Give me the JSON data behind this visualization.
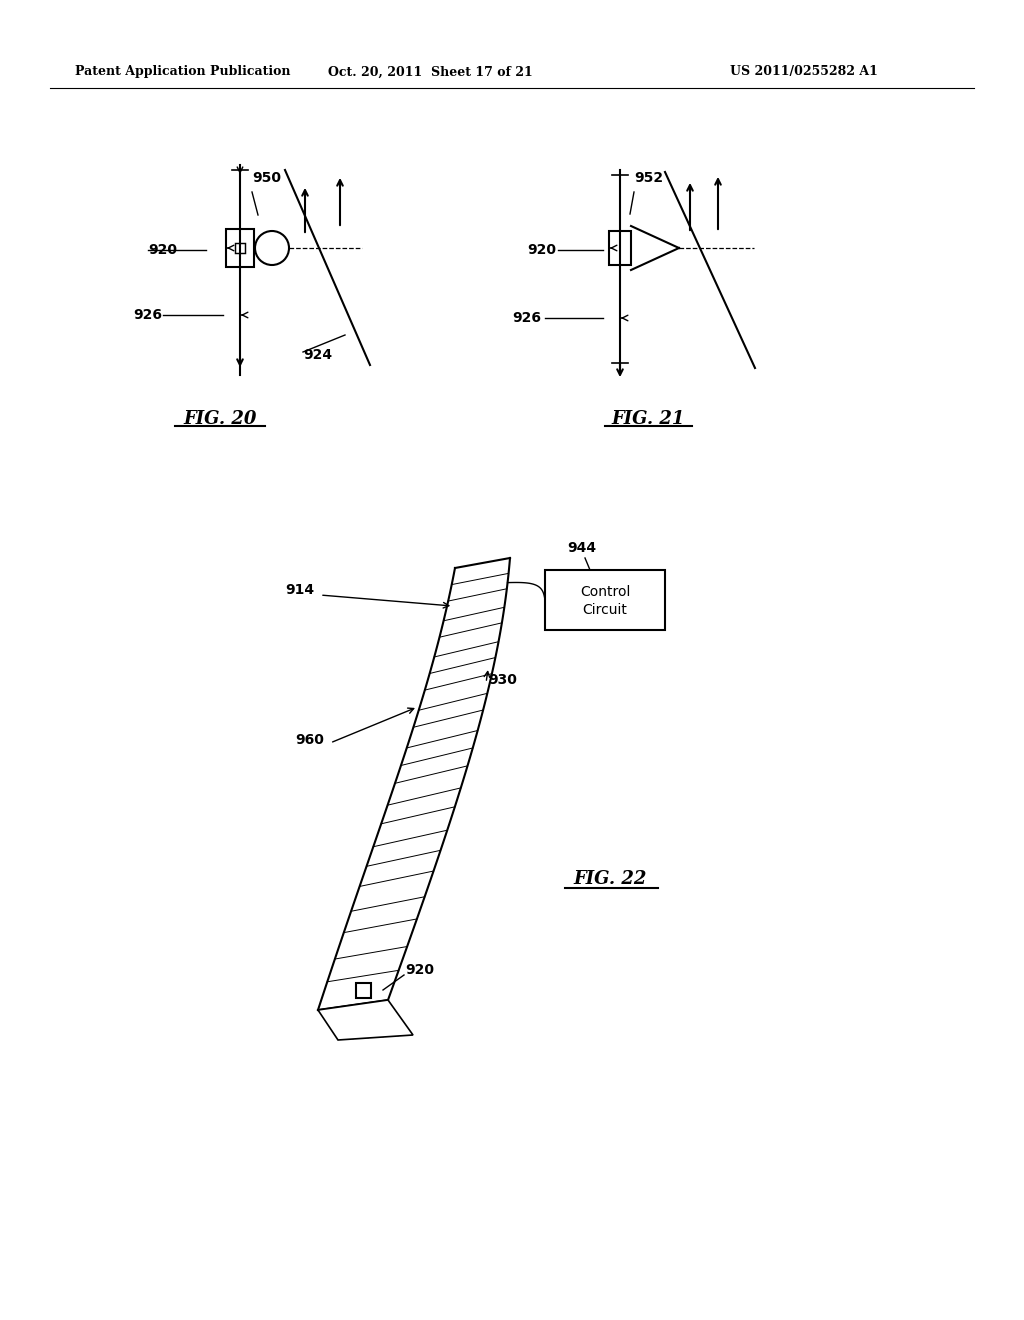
{
  "background_color": "#ffffff",
  "header_left": "Patent Application Publication",
  "header_mid": "Oct. 20, 2011  Sheet 17 of 21",
  "header_right": "US 2011/0255282 A1",
  "fig20_title": "FIG. 20",
  "fig21_title": "FIG. 21",
  "fig22_title": "FIG. 22"
}
